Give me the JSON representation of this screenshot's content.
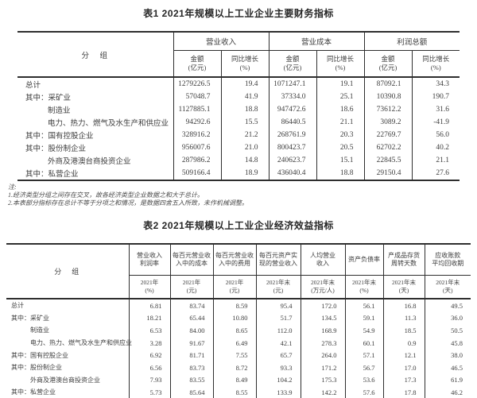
{
  "page": {
    "table1": {
      "title": "表1 2021年规模以上工业企业主要财务指标",
      "group_col_label": "分　组",
      "header_groups": [
        {
          "label": "营业收入",
          "subs": [
            "金额\n(亿元)",
            "同比增长\n(%)"
          ]
        },
        {
          "label": "营业成本",
          "subs": [
            "金额\n(亿元)",
            "同比增长\n(%)"
          ]
        },
        {
          "label": "利润总额",
          "subs": [
            "金额\n(亿元)",
            "同比增长\n(%)"
          ]
        }
      ],
      "rows": [
        {
          "label": "总计",
          "indent": 0,
          "values": [
            "1279226.5",
            "19.4",
            "1071247.1",
            "19.1",
            "87092.1",
            "34.3"
          ]
        },
        {
          "label": "其中：采矿业",
          "indent": 0,
          "values": [
            "57048.7",
            "41.9",
            "37334.0",
            "25.1",
            "10390.8",
            "190.7"
          ]
        },
        {
          "label": "制造业",
          "indent": 1,
          "values": [
            "1127885.1",
            "18.8",
            "947472.6",
            "18.6",
            "73612.2",
            "31.6"
          ]
        },
        {
          "label": "电力、热力、燃气及水生产和供应业",
          "indent": 1,
          "values": [
            "94292.6",
            "15.5",
            "86440.5",
            "21.1",
            "3089.2",
            "-41.9"
          ]
        },
        {
          "label": "其中：国有控股企业",
          "indent": 0,
          "values": [
            "328916.2",
            "21.2",
            "268761.9",
            "20.3",
            "22769.7",
            "56.0"
          ]
        },
        {
          "label": "其中：股份制企业",
          "indent": 0,
          "values": [
            "956007.6",
            "21.0",
            "800423.7",
            "20.5",
            "62702.2",
            "40.2"
          ]
        },
        {
          "label": "外商及港澳台商投资企业",
          "indent": 1,
          "values": [
            "287986.2",
            "14.8",
            "240623.7",
            "15.1",
            "22845.5",
            "21.1"
          ]
        },
        {
          "label": "其中：私营企业",
          "indent": 0,
          "values": [
            "509166.4",
            "18.9",
            "436040.4",
            "18.8",
            "29150.4",
            "27.6"
          ]
        }
      ],
      "notes": {
        "label": "注:",
        "items": [
          "1.经济类型分组之间存在交叉，故各经济类型企业数据之和大于总计。",
          "2.本表部分指标存在总计不等于分项之和情况，是数据四舍五入所致，未作机械调整。"
        ]
      }
    },
    "table2": {
      "title": "表2 2021年规模以上工业企业经济效益指标",
      "group_col_label": "分　组",
      "columns": [
        {
          "name": "营业收入\n利润率",
          "unit": "2021年\n(%)"
        },
        {
          "name": "每百元营业收\n入中的成本",
          "unit": "2021年\n(元)"
        },
        {
          "name": "每百元营业收\n入中的费用",
          "unit": "2021年\n(元)"
        },
        {
          "name": "每百元资产实\n现的营业收入",
          "unit": "2021年末\n(元)"
        },
        {
          "name": "人均营业\n收入",
          "unit": "2021年末\n(万元/人)"
        },
        {
          "name": "资产负债率",
          "unit": "2021年末\n(%)"
        },
        {
          "name": "产成品存货\n周转天数",
          "unit": "2021年末\n(天)"
        },
        {
          "name": "应收账款\n平均回收期",
          "unit": "2021年末\n(天)"
        }
      ],
      "rows": [
        {
          "label": "总计",
          "indent": 0,
          "values": [
            "6.81",
            "83.74",
            "8.59",
            "95.4",
            "172.0",
            "56.1",
            "16.8",
            "49.5"
          ]
        },
        {
          "label": "其中：采矿业",
          "indent": 0,
          "values": [
            "18.21",
            "65.44",
            "10.80",
            "51.7",
            "134.5",
            "59.1",
            "11.3",
            "36.0"
          ]
        },
        {
          "label": "制造业",
          "indent": 1,
          "values": [
            "6.53",
            "84.00",
            "8.65",
            "112.0",
            "168.9",
            "54.9",
            "18.5",
            "50.5"
          ]
        },
        {
          "label": "电力、热力、燃气及水生产和供应业",
          "indent": 1,
          "values": [
            "3.28",
            "91.67",
            "6.49",
            "42.1",
            "278.3",
            "60.1",
            "0.9",
            "45.8"
          ]
        },
        {
          "label": "其中：国有控股企业",
          "indent": 0,
          "values": [
            "6.92",
            "81.71",
            "7.55",
            "65.7",
            "264.0",
            "57.1",
            "12.1",
            "38.0"
          ]
        },
        {
          "label": "其中：股份制企业",
          "indent": 0,
          "values": [
            "6.56",
            "83.73",
            "8.72",
            "93.3",
            "171.2",
            "56.7",
            "17.0",
            "46.5"
          ]
        },
        {
          "label": "外商及港澳台商投资企业",
          "indent": 1,
          "values": [
            "7.93",
            "83.55",
            "8.49",
            "104.2",
            "175.3",
            "53.6",
            "17.3",
            "61.9"
          ]
        },
        {
          "label": "其中：私营企业",
          "indent": 0,
          "values": [
            "5.73",
            "85.64",
            "8.55",
            "133.9",
            "142.2",
            "57.6",
            "17.8",
            "46.2"
          ]
        }
      ]
    }
  }
}
